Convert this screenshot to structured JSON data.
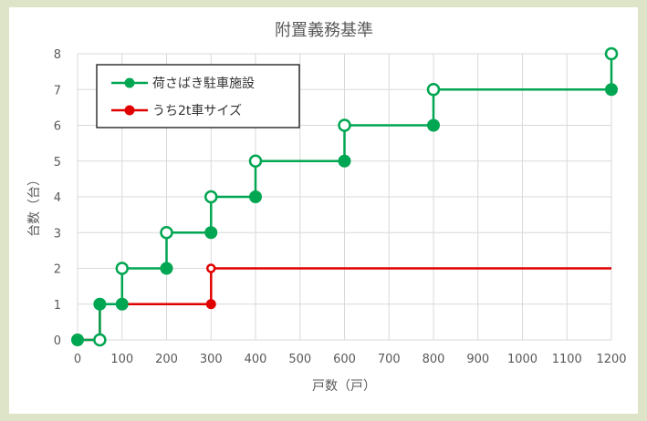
{
  "chart_data": {
    "type": "line",
    "title": "附置義務基準",
    "xlabel": "戸数（戸）",
    "ylabel": "台数（台）",
    "xlim": [
      0,
      1200
    ],
    "ylim": [
      0,
      8
    ],
    "x_ticks": [
      "0",
      "100",
      "200",
      "300",
      "400",
      "500",
      "600",
      "700",
      "800",
      "900",
      "1000",
      "1100",
      "1200"
    ],
    "y_ticks": [
      "0",
      "1",
      "2",
      "3",
      "4",
      "5",
      "6",
      "7",
      "8"
    ],
    "grid": true,
    "legend_position": "top-left",
    "series": [
      {
        "name": "荷さばき駐車施設",
        "color": "#00a651",
        "x": [
          0,
          50,
          50,
          100,
          100,
          200,
          200,
          300,
          300,
          400,
          400,
          600,
          600,
          800,
          800,
          1200,
          1200
        ],
        "y": [
          0,
          0,
          1,
          1,
          2,
          2,
          3,
          3,
          4,
          4,
          5,
          5,
          6,
          6,
          7,
          7,
          8
        ],
        "filled_points": [
          [
            0,
            0
          ],
          [
            50,
            1
          ],
          [
            100,
            1
          ],
          [
            200,
            2
          ],
          [
            300,
            3
          ],
          [
            400,
            4
          ],
          [
            600,
            5
          ],
          [
            800,
            6
          ],
          [
            1200,
            7
          ]
        ],
        "open_points": [
          [
            50,
            0
          ],
          [
            100,
            2
          ],
          [
            200,
            3
          ],
          [
            300,
            4
          ],
          [
            400,
            5
          ],
          [
            600,
            6
          ],
          [
            800,
            7
          ],
          [
            1200,
            8
          ]
        ]
      },
      {
        "name": "うち2t車サイズ",
        "color": "#e00000",
        "x": [
          0,
          50,
          50,
          300,
          300,
          1200
        ],
        "y": [
          0,
          0,
          1,
          1,
          2,
          2
        ],
        "filled_points": [
          [
            0,
            0
          ],
          [
            50,
            1
          ],
          [
            100,
            1
          ],
          [
            300,
            1
          ]
        ],
        "open_points": [
          [
            300,
            2
          ]
        ]
      }
    ]
  }
}
